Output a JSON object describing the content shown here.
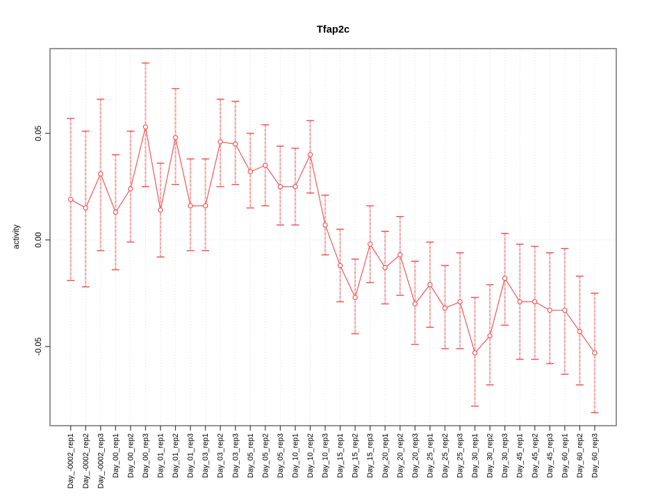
{
  "page": {
    "background": "#ffffff"
  },
  "chart_data": {
    "type": "scatter",
    "subtype": "points-with-error-bars",
    "title": "Tfap2c",
    "xlabel": "",
    "ylabel": "activity",
    "legend": "none",
    "grid": {
      "vertical_dotted_per_category": true,
      "horizontal_dotted_at_zero": true
    },
    "x_label_rotation_deg": 90,
    "marker": "open-circle",
    "categories": [
      "Day_-0002_rep1",
      "Day_-0002_rep2",
      "Day_-0002_rep3",
      "Day_00_rep1",
      "Day_00_rep2",
      "Day_00_rep3",
      "Day_01_rep1",
      "Day_01_rep2",
      "Day_01_rep3",
      "Day_03_rep1",
      "Day_03_rep2",
      "Day_03_rep3",
      "Day_05_rep1",
      "Day_05_rep2",
      "Day_05_rep3",
      "Day_10_rep1",
      "Day_10_rep2",
      "Day_10_rep3",
      "Day_15_rep1",
      "Day_15_rep2",
      "Day_15_rep3",
      "Day_20_rep1",
      "Day_20_rep2",
      "Day_20_rep3",
      "Day_25_rep1",
      "Day_25_rep2",
      "Day_25_rep3",
      "Day_30_rep1",
      "Day_30_rep2",
      "Day_30_rep3",
      "Day_45_rep1",
      "Day_45_rep2",
      "Day_45_rep3",
      "Day_60_rep1",
      "Day_60_rep2",
      "Day_60_rep3"
    ],
    "series": [
      {
        "name": "activity",
        "values": [
          0.019,
          0.015,
          0.031,
          0.013,
          0.024,
          0.053,
          0.014,
          0.048,
          0.016,
          0.016,
          0.046,
          0.045,
          0.032,
          0.035,
          0.025,
          0.025,
          0.04,
          0.007,
          -0.012,
          -0.027,
          -0.002,
          -0.013,
          -0.007,
          -0.03,
          -0.021,
          -0.032,
          -0.029,
          -0.053,
          -0.045,
          -0.018,
          -0.029,
          -0.029,
          -0.033,
          -0.033,
          -0.043,
          -0.053
        ],
        "ci_high": [
          0.057,
          0.051,
          0.066,
          0.04,
          0.051,
          0.083,
          0.036,
          0.071,
          0.038,
          0.038,
          0.066,
          0.065,
          0.05,
          0.054,
          0.044,
          0.043,
          0.056,
          0.021,
          0.005,
          -0.009,
          0.016,
          0.004,
          0.011,
          -0.01,
          -0.001,
          -0.012,
          -0.006,
          -0.027,
          -0.021,
          0.003,
          -0.002,
          -0.003,
          -0.006,
          -0.004,
          -0.017,
          -0.025
        ],
        "ci_low": [
          -0.019,
          -0.022,
          -0.005,
          -0.014,
          -0.001,
          0.025,
          -0.008,
          0.026,
          -0.005,
          -0.005,
          0.025,
          0.026,
          0.015,
          0.016,
          0.007,
          0.007,
          0.022,
          -0.007,
          -0.029,
          -0.044,
          -0.02,
          -0.03,
          -0.026,
          -0.049,
          -0.041,
          -0.051,
          -0.051,
          -0.078,
          -0.068,
          -0.04,
          -0.056,
          -0.056,
          -0.058,
          -0.063,
          -0.068,
          -0.081
        ]
      }
    ],
    "yticks": [
      -0.05,
      0,
      0.05
    ],
    "ytick_labels": [
      "-0.05",
      "0.00",
      "0.05"
    ],
    "ylim": [
      -0.087,
      0.09
    ],
    "colors": {
      "point": "#f25555",
      "line": "#f25555",
      "cap": "#f25555",
      "whisker": "#f59b9b",
      "whisker_halo": "#f8bcbc",
      "grid": "#dcdcdc",
      "box": "#828282",
      "tick": "#3a3a3a",
      "text": "#000000",
      "background": "#ffffff"
    }
  }
}
